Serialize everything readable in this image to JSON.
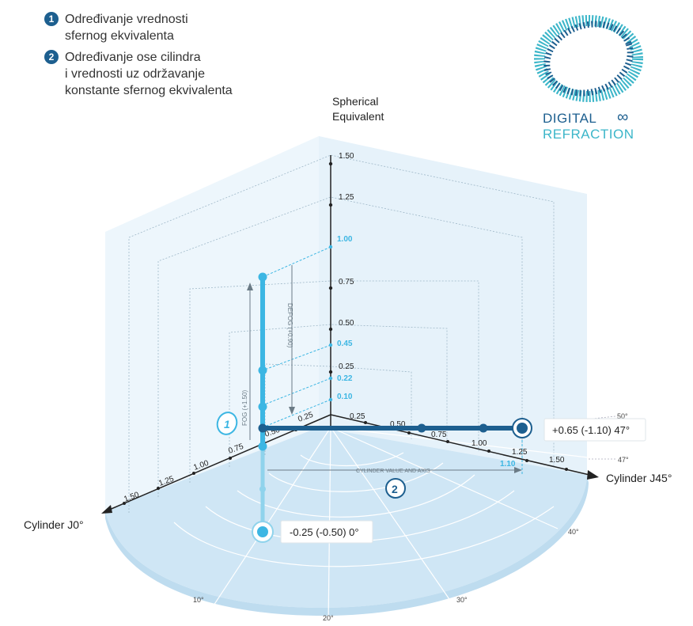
{
  "legend": [
    {
      "number": "1",
      "text": "Određivanje vrednosti\nsfernog ekvivalenta"
    },
    {
      "number": "2",
      "text": "Određivanje ose cilindra\ni vrednosti uz održavanje\nkonstante sfernog ekvivalenta"
    }
  ],
  "logo": {
    "line1": "DIGITAL",
    "line2": "REFRACTION",
    "symbol": "∞"
  },
  "axes": {
    "vertical": {
      "title_line1": "Spherical",
      "title_line2": "Equivalent"
    },
    "left": "Cylinder J0°",
    "right": "Cylinder J45°"
  },
  "vertical_ticks": {
    "black": [
      "1.50",
      "1.25",
      "0.75",
      "0.50",
      "0.25"
    ],
    "cyan": [
      "1.00",
      "0.45",
      "0.22",
      "0.10"
    ]
  },
  "left_ticks": [
    "0.25",
    "0.50",
    "0.75",
    "1.00",
    "1.25",
    "1.50"
  ],
  "right_ticks": [
    "0.25",
    "0.50",
    "0.75",
    "1.00",
    "1.25",
    "1.50"
  ],
  "right_cyan_tick": "1.10",
  "degree_labels": [
    "50°",
    "47°",
    "40°",
    "30°",
    "20°",
    "10°"
  ],
  "annotations": {
    "defog": "DEFOG (+0.90)",
    "fog": "FOG (+1.50)",
    "cylinder_value_axis": "CYLINDER VALUE AND AXIS",
    "marker1": "1",
    "marker2": "2"
  },
  "results": {
    "right": "+0.65 (-1.10) 47°",
    "bottom": "-0.25 (-0.50) 0°"
  },
  "colors": {
    "dark_blue": "#1d5f8f",
    "cyan": "#3cb6e3",
    "wall": "#eaf4fb",
    "floor": "#cfe6f5"
  }
}
